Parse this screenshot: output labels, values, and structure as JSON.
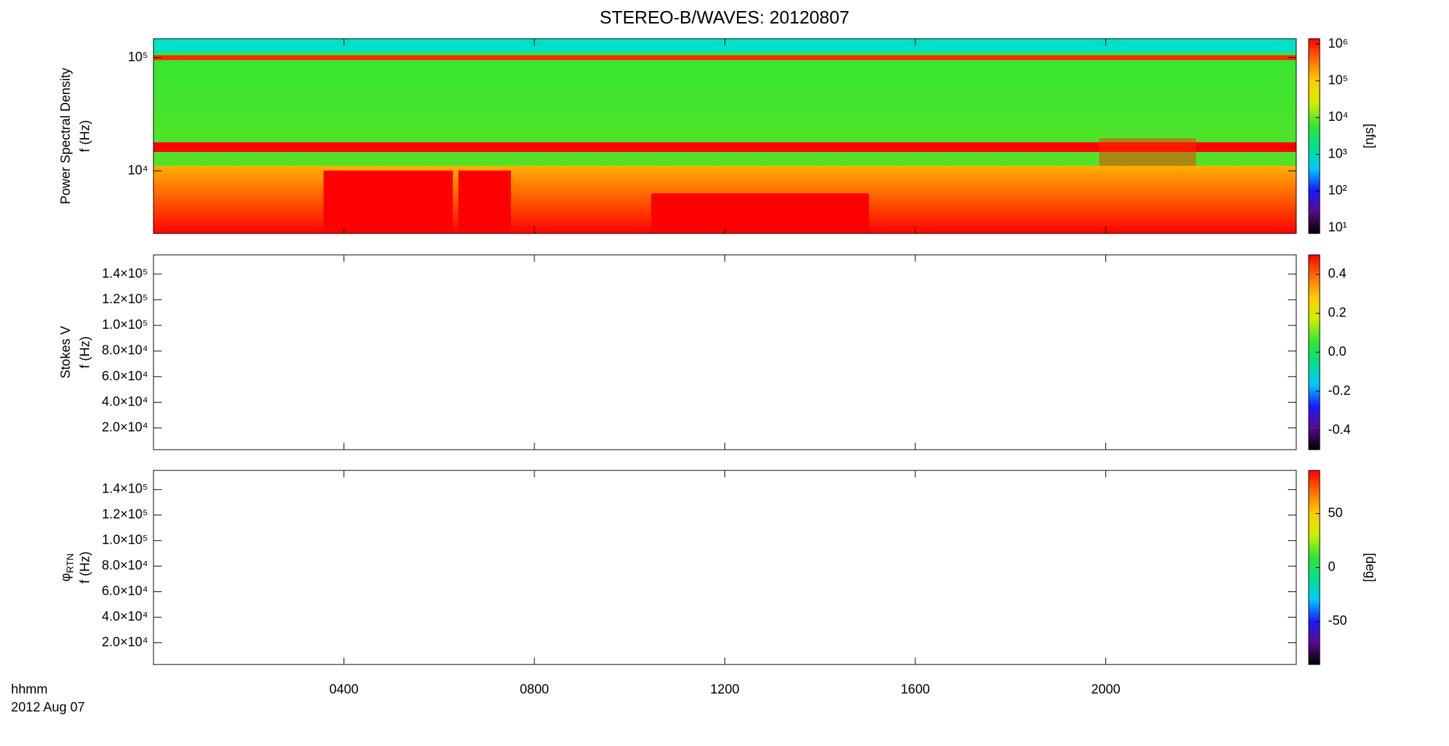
{
  "title": "STEREO-B/WAVES: 20120807",
  "colormap": [
    "#000000",
    "#5a0a8c",
    "#1a1aff",
    "#00c8ff",
    "#00e08c",
    "#33e633",
    "#ccf000",
    "#ffd000",
    "#ff7000",
    "#ff0000"
  ],
  "x_axis": {
    "label": "hhmm",
    "date": "2012 Aug 07",
    "xlim": [
      0,
      24
    ],
    "xticks": [
      {
        "value": 4,
        "label": "0400"
      },
      {
        "value": 8,
        "label": "0800"
      },
      {
        "value": 12,
        "label": "1200"
      },
      {
        "value": 16,
        "label": "1600"
      },
      {
        "value": 20,
        "label": "2000"
      }
    ]
  },
  "chart_data": [
    {
      "type": "spectrogram",
      "ylabel": [
        "Power Spectral Density",
        "f (Hz)"
      ],
      "log_y": true,
      "ylim": [
        2800,
        147000
      ],
      "yticks": [
        {
          "value": 10000,
          "label": "10⁴"
        },
        {
          "value": 100000,
          "label": "10⁵"
        }
      ],
      "colorbar": {
        "log": true,
        "zlim": [
          7,
          1400000
        ],
        "label": "[sfu]",
        "ticks": [
          {
            "value": 10,
            "label": "10¹"
          },
          {
            "value": 100,
            "label": "10²"
          },
          {
            "value": 1000,
            "label": "10³"
          },
          {
            "value": 10000,
            "label": "10⁴"
          },
          {
            "value": 100000,
            "label": "10⁵"
          },
          {
            "value": 1000000,
            "label": "10⁶"
          }
        ]
      }
    },
    {
      "type": "spectrogram",
      "ylabel": [
        "Stokes V",
        "f (Hz)"
      ],
      "log_y": false,
      "ylim": [
        3000,
        155000
      ],
      "yticks": [
        {
          "value": 20000,
          "label": "2.0×10⁴"
        },
        {
          "value": 40000,
          "label": "4.0×10⁴"
        },
        {
          "value": 60000,
          "label": "6.0×10⁴"
        },
        {
          "value": 80000,
          "label": "8.0×10⁴"
        },
        {
          "value": 100000,
          "label": "1.0×10⁵"
        },
        {
          "value": 120000,
          "label": "1.2×10⁵"
        },
        {
          "value": 140000,
          "label": "1.4×10⁵"
        }
      ],
      "colorbar": {
        "log": false,
        "zlim": [
          -0.5,
          0.5
        ],
        "ticks": [
          -0.4,
          -0.2,
          {
            "value": 0,
            "label": "0.0"
          },
          0.2,
          0.4
        ]
      }
    },
    {
      "type": "spectrogram",
      "ylabel": [
        {
          "symbol": "φ",
          "subscript": "RTN"
        },
        "f (Hz)"
      ],
      "log_y": false,
      "ylim": [
        3000,
        155000
      ],
      "yticks": [
        {
          "value": 20000,
          "label": "2.0×10⁴"
        },
        {
          "value": 40000,
          "label": "4.0×10⁴"
        },
        {
          "value": 60000,
          "label": "6.0×10⁴"
        },
        {
          "value": 80000,
          "label": "8.0×10⁴"
        },
        {
          "value": 100000,
          "label": "1.0×10⁵"
        },
        {
          "value": 120000,
          "label": "1.2×10⁵"
        },
        {
          "value": 140000,
          "label": "1.4×10⁵"
        }
      ],
      "colorbar": {
        "log": false,
        "zlim": [
          -90,
          90
        ],
        "label": "[deg]",
        "ticks": [
          -50,
          0,
          50
        ]
      }
    }
  ]
}
